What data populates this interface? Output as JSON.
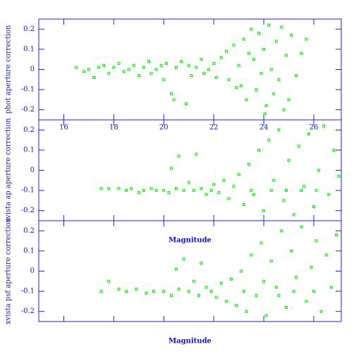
{
  "chart_data": [
    {
      "type": "scatter",
      "y_label": "phot aperture correction",
      "color": "#00ee00",
      "xlim": [
        15,
        27.1
      ],
      "ylim": [
        -0.25,
        0.25
      ],
      "xticks": [
        16,
        18,
        20,
        22,
        24,
        26
      ],
      "yticks": [
        -0.2,
        -0.1,
        0,
        0.1,
        0.2
      ],
      "xtick_labels": true,
      "x": [
        16.5,
        16.8,
        17.0,
        17.2,
        17.4,
        17.6,
        17.8,
        18.0,
        18.2,
        18.4,
        18.6,
        18.8,
        19.0,
        19.2,
        19.4,
        19.5,
        19.7,
        19.9,
        20.0,
        20.1,
        20.3,
        20.4,
        20.5,
        20.7,
        20.9,
        21.0,
        21.1,
        21.3,
        21.5,
        21.6,
        21.8,
        22.0,
        22.1,
        22.3,
        22.5,
        22.6,
        22.8,
        23.0,
        23.1,
        23.2,
        23.3,
        23.5,
        23.6,
        23.7,
        23.8,
        23.9,
        24.0,
        24.1,
        24.2,
        24.3,
        24.4,
        24.5,
        24.6,
        24.7,
        24.8,
        24.9,
        25.0,
        25.1,
        25.3,
        25.5,
        25.7,
        22.9,
        23.4,
        24.05
      ],
      "values": [
        0.01,
        -0.01,
        0.0,
        -0.04,
        0.01,
        0.02,
        -0.02,
        0.01,
        0.03,
        -0.01,
        0.0,
        0.02,
        -0.03,
        0.01,
        0.04,
        -0.02,
        0.0,
        0.02,
        -0.05,
        0.03,
        -0.12,
        -0.15,
        0.01,
        0.04,
        -0.17,
        0.02,
        -0.03,
        0.01,
        0.05,
        -0.02,
        0.0,
        0.03,
        -0.04,
        0.06,
        0.09,
        -0.05,
        0.12,
        0.02,
        -0.08,
        0.15,
        -0.15,
        0.2,
        0.05,
        -0.1,
        0.18,
        -0.02,
        0.1,
        -0.18,
        0.22,
        0.0,
        -0.12,
        0.14,
        -0.05,
        0.21,
        -0.2,
        0.07,
        -0.15,
        0.17,
        -0.03,
        0.08,
        0.15,
        -0.09,
        0.08,
        -0.22
      ]
    },
    {
      "type": "scatter",
      "y_label": "xvista ap aperture correction",
      "x_label": "Magnitude",
      "color": "#00ee00",
      "xlim": [
        15,
        27.1
      ],
      "ylim": [
        -0.25,
        0.25
      ],
      "xticks": [
        16,
        18,
        20,
        22,
        24,
        26
      ],
      "yticks": [
        -0.2,
        -0.1,
        0,
        0.1,
        0.2
      ],
      "xtick_labels": false,
      "x": [
        17.5,
        17.8,
        18.2,
        18.5,
        18.7,
        19.0,
        19.2,
        19.5,
        19.7,
        20.0,
        20.2,
        20.3,
        20.5,
        20.6,
        20.8,
        21.0,
        21.2,
        21.3,
        21.5,
        21.7,
        21.9,
        22.0,
        22.2,
        22.4,
        22.6,
        22.8,
        23.0,
        23.2,
        23.4,
        23.6,
        23.8,
        24.0,
        24.2,
        24.4,
        24.6,
        24.8,
        25.0,
        25.2,
        25.4,
        25.6,
        25.8,
        26.0,
        26.2,
        26.4,
        26.6,
        26.8,
        27.0,
        24.3,
        24.9,
        25.5,
        26.1,
        23.5
      ],
      "values": [
        -0.09,
        -0.09,
        -0.09,
        -0.1,
        -0.09,
        -0.11,
        -0.1,
        -0.09,
        -0.1,
        -0.1,
        -0.11,
        0.01,
        -0.09,
        0.07,
        -0.1,
        -0.06,
        -0.1,
        0.08,
        -0.09,
        -0.12,
        -0.1,
        -0.07,
        -0.11,
        -0.05,
        -0.14,
        -0.08,
        -0.02,
        -0.17,
        0.03,
        -0.12,
        0.1,
        -0.2,
        0.15,
        -0.05,
        0.2,
        -0.15,
        0.05,
        -0.22,
        0.12,
        -0.08,
        0.18,
        -0.18,
        0.0,
        0.22,
        -0.12,
        0.1,
        -0.03,
        -0.1,
        -0.1,
        -0.1,
        -0.1,
        -0.1
      ]
    },
    {
      "type": "scatter",
      "y_label": "xvista psf aperture correction",
      "x_label": "Magnitude",
      "color": "#00ee00",
      "xlim": [
        15,
        27.1
      ],
      "ylim": [
        -0.25,
        0.25
      ],
      "xticks": [
        16,
        18,
        20,
        22,
        24,
        26
      ],
      "yticks": [
        -0.2,
        -0.1,
        0,
        0.1,
        0.2
      ],
      "xtick_labels": false,
      "x": [
        17.5,
        17.8,
        18.2,
        18.5,
        18.9,
        19.3,
        19.6,
        20.0,
        20.3,
        20.5,
        20.6,
        20.8,
        21.0,
        21.2,
        21.4,
        21.5,
        21.7,
        21.9,
        22.1,
        22.3,
        22.5,
        22.7,
        22.9,
        23.1,
        23.3,
        23.5,
        23.7,
        23.9,
        24.1,
        24.3,
        24.5,
        24.7,
        24.9,
        25.1,
        25.3,
        25.5,
        25.7,
        25.9,
        26.1,
        26.3,
        26.5,
        26.7,
        26.9,
        23.2,
        24.0,
        24.6,
        25.2,
        26.0
      ],
      "values": [
        -0.1,
        -0.05,
        -0.09,
        -0.1,
        -0.09,
        -0.11,
        -0.1,
        -0.1,
        -0.12,
        0.01,
        -0.09,
        0.06,
        -0.1,
        -0.05,
        -0.12,
        0.04,
        -0.08,
        -0.1,
        -0.13,
        -0.06,
        -0.15,
        -0.04,
        -0.17,
        0.0,
        -0.2,
        0.08,
        -0.12,
        0.14,
        -0.22,
        0.05,
        -0.08,
        0.2,
        -0.18,
        0.1,
        -0.03,
        0.22,
        -0.15,
        0.02,
        0.15,
        -0.2,
        0.08,
        -0.08,
        0.18,
        -0.1,
        -0.05,
        -0.12,
        -0.1,
        -0.1
      ]
    }
  ]
}
